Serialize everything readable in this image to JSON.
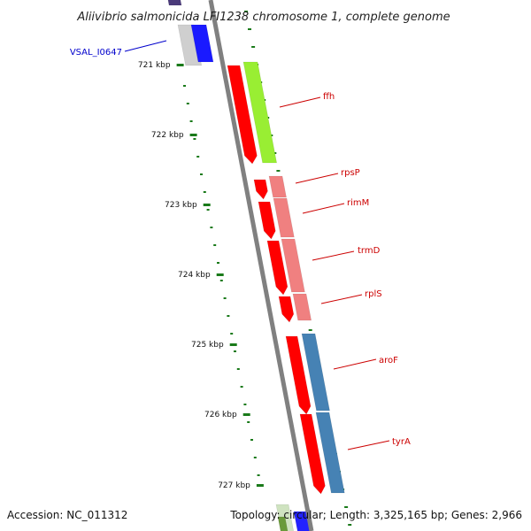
{
  "title": "Aliivibrio salmonicida LFI1238 chromosome 1, complete genome",
  "footer": {
    "accession": "Accession: NC_011312",
    "summary": "Topology: circular; Length: 3,325,165 bp; Genes: 2,966"
  },
  "colors": {
    "backbone": "#808080",
    "tick": "#1a7a1a",
    "label_red": "#cc0000",
    "label_blue": "#0000cc",
    "cds": "#ff0000",
    "ffh_feature": "#99ee33",
    "ribosomal_feature": "#f08080",
    "aromatic_feature": "#4682b4"
  },
  "scale": {
    "ticks": [
      {
        "label": "721 kbp",
        "kbp": 721
      },
      {
        "label": "722 kbp",
        "kbp": 722
      },
      {
        "label": "723 kbp",
        "kbp": 723
      },
      {
        "label": "724 kbp",
        "kbp": 724
      },
      {
        "label": "725 kbp",
        "kbp": 725
      },
      {
        "label": "726 kbp",
        "kbp": 726
      },
      {
        "label": "727 kbp",
        "kbp": 727
      }
    ]
  },
  "genes": [
    {
      "name": "VSAL_I0647",
      "color": "blue"
    },
    {
      "name": "ffh",
      "color": "red"
    },
    {
      "name": "rpsP",
      "color": "red"
    },
    {
      "name": "rimM",
      "color": "red"
    },
    {
      "name": "trmD",
      "color": "red"
    },
    {
      "name": "rplS",
      "color": "red"
    },
    {
      "name": "aroF",
      "color": "red"
    },
    {
      "name": "tyrA",
      "color": "red"
    }
  ]
}
